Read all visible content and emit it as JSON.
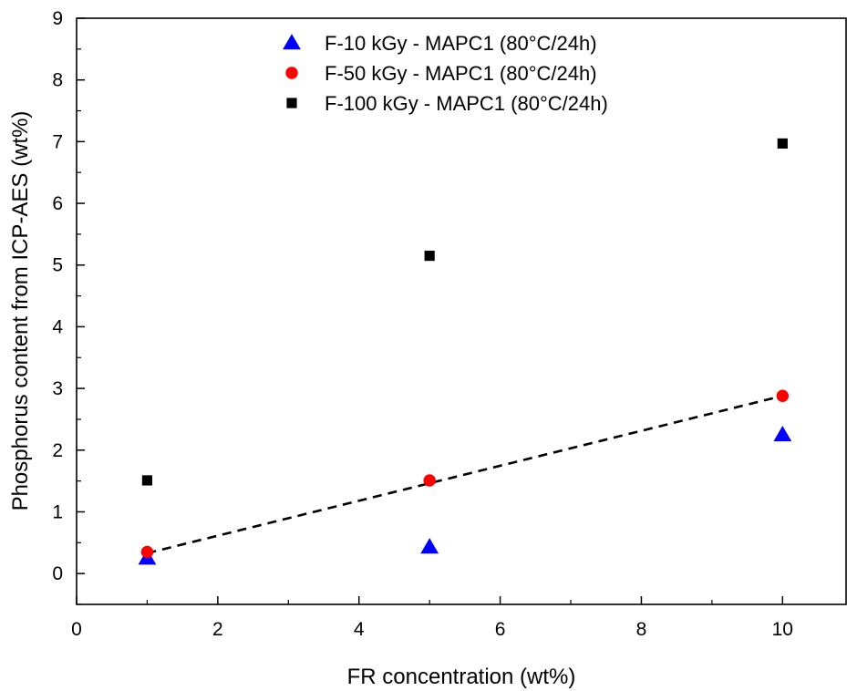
{
  "chart_data": {
    "type": "scatter",
    "title": "",
    "xlabel": "FR concentration (wt%)",
    "ylabel": "Phosphorus content from ICP-AES (wt%)",
    "xlim": [
      0,
      10.9
    ],
    "ylim": [
      -0.5,
      9
    ],
    "x_ticks": [
      0,
      2,
      4,
      6,
      8,
      10
    ],
    "y_ticks": [
      0,
      1,
      2,
      3,
      4,
      5,
      6,
      7,
      8,
      9
    ],
    "x_tick_labels": [
      "0",
      "2",
      "4",
      "6",
      "8",
      "10"
    ],
    "y_tick_labels": [
      "0",
      "1",
      "2",
      "3",
      "4",
      "5",
      "6",
      "7",
      "8",
      "9"
    ],
    "legend_position": "top-center",
    "grid": false,
    "series": [
      {
        "name": "F-10 kGy - MAPC1 (80°C/24h)",
        "marker": "triangle",
        "color": "#0000ff",
        "points": [
          [
            1,
            0.25
          ],
          [
            5,
            0.43
          ],
          [
            10,
            2.25
          ]
        ]
      },
      {
        "name": "F-50 kGy - MAPC1 (80°C/24h)",
        "marker": "circle",
        "color": "#ff0000",
        "points": [
          [
            1,
            0.35
          ],
          [
            5,
            1.51
          ],
          [
            10,
            2.88
          ]
        ]
      },
      {
        "name": "F-100 kGy - MAPC1 (80°C/24h)",
        "marker": "square",
        "color": "#000000",
        "points": [
          [
            1,
            1.51
          ],
          [
            5,
            5.15
          ],
          [
            10,
            6.97
          ]
        ]
      }
    ],
    "trendline": {
      "style": "dashed",
      "color": "#000000",
      "points": [
        [
          1,
          0.33
        ],
        [
          10,
          2.88
        ]
      ]
    }
  }
}
